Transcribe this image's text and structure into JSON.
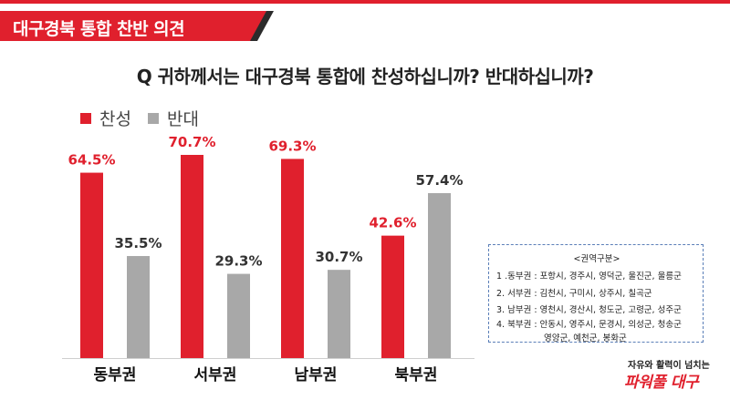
{
  "banner": {
    "title": "대구경북 통합 찬반 의견"
  },
  "question": "Q 귀하께서는 대구경북 통합에 찬성하십니까? 반대하십니까?",
  "colors": {
    "accent": "#e0202d",
    "support": "#e0202d",
    "oppose": "#a8a8a8",
    "banner_dark": "#2b2b2b"
  },
  "legend": [
    {
      "label": "찬성",
      "color": "#e0202d"
    },
    {
      "label": "반대",
      "color": "#a8a8a8"
    }
  ],
  "chart_data": {
    "type": "bar",
    "categories": [
      "동부권",
      "서부권",
      "남부권",
      "북부권"
    ],
    "series": [
      {
        "name": "찬성",
        "values": [
          64.5,
          70.7,
          69.3,
          42.6
        ],
        "labels": [
          "64.5%",
          "70.7%",
          "69.3%",
          "42.6%"
        ]
      },
      {
        "name": "반대",
        "values": [
          35.5,
          29.3,
          30.7,
          57.4
        ],
        "labels": [
          "35.5%",
          "29.3%",
          "30.7%",
          "57.4%"
        ]
      }
    ],
    "title": "Q 귀하께서는 대구경북 통합에 찬성하십니까? 반대하십니까?",
    "xlabel": "",
    "ylabel": "",
    "ylim": [
      0,
      70.7
    ],
    "grid": false,
    "legend_position": "top-left"
  },
  "region_box": {
    "title": "<권역구분>",
    "rows": [
      "1 .동부권 : 포항시, 경주시, 영덕군, 울진군, 울릉군",
      "2. 서부권 : 김천시, 구미시, 상주시, 칠곡군",
      "3. 남부권 : 영천시, 경산시, 청도군, 고령군, 성주군",
      "4. 북부권 : 안동시, 영주시, 문경시, 의성군, 청송군",
      "영양군, 예천군, 봉화군"
    ]
  },
  "brand": {
    "tagline": "자유와 활력이 넘치는",
    "name": "파워풀 대구"
  }
}
